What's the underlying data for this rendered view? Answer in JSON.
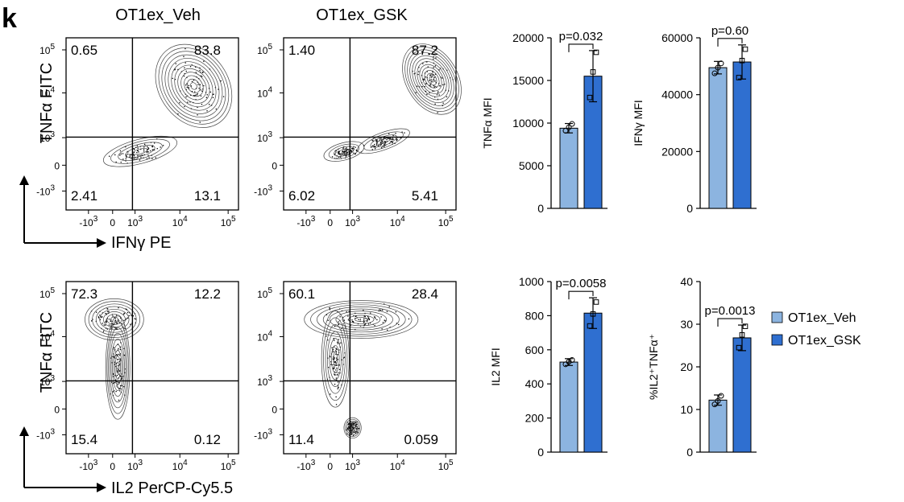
{
  "panel_letter": "k",
  "colors": {
    "veh": "#8cb4e0",
    "gsk": "#2f6fd0",
    "axis": "#000000",
    "contour": "#444444"
  },
  "flow": {
    "columns": [
      "OT1ex_Veh",
      "OT1ex_GSK"
    ],
    "x_ticks": [
      "-10",
      "0",
      "10",
      "10",
      "10"
    ],
    "x_exps": [
      "3",
      "",
      "3",
      "4",
      "5"
    ],
    "y_ticks": [
      "10",
      "10",
      "10",
      "0",
      "-10"
    ],
    "y_exps": [
      "5",
      "4",
      "3",
      "",
      "3"
    ],
    "rows": [
      {
        "ylabel": "TNFα FITC",
        "xlabel": "IFNγ PE",
        "plots": [
          {
            "q1": "0.65",
            "q2": "83.8",
            "q3": "2.41",
            "q4": "13.1"
          },
          {
            "q1": "1.40",
            "q2": "87.2",
            "q3": "6.02",
            "q4": "5.41"
          }
        ]
      },
      {
        "ylabel": "TNFα FITC",
        "xlabel": "IL2 PerCP-Cy5.5",
        "plots": [
          {
            "q1": "72.3",
            "q2": "12.2",
            "q3": "15.4",
            "q4": "0.12"
          },
          {
            "q1": "60.1",
            "q2": "28.4",
            "q3": "11.4",
            "q4": "0.059"
          }
        ]
      }
    ]
  },
  "legend": [
    "OT1ex_Veh",
    "OT1ex_GSK"
  ],
  "chart_data": [
    {
      "type": "bar",
      "ylabel": "TNFα MFI",
      "categories": [
        "OT1ex_Veh",
        "OT1ex_GSK"
      ],
      "values": [
        9400,
        15500
      ],
      "errors": [
        550,
        3000
      ],
      "points": [
        [
          9100,
          9500,
          9900
        ],
        [
          13000,
          16000,
          18300
        ]
      ],
      "ylim": [
        0,
        20000
      ],
      "yticks": [
        "0",
        "5000",
        "10000",
        "15000",
        "20000"
      ],
      "pvalue": "p=0.032"
    },
    {
      "type": "bar",
      "ylabel": "IFNγ MFI",
      "categories": [
        "OT1ex_Veh",
        "OT1ex_GSK"
      ],
      "values": [
        49500,
        51500
      ],
      "errors": [
        2200,
        6000
      ],
      "points": [
        [
          47500,
          49500,
          51000
        ],
        [
          46000,
          52000,
          56000
        ]
      ],
      "ylim": [
        0,
        60000
      ],
      "yticks": [
        "0",
        "20000",
        "40000",
        "60000"
      ],
      "pvalue": "p=0.60"
    },
    {
      "type": "bar",
      "ylabel": "IL2 MFI",
      "categories": [
        "OT1ex_Veh",
        "OT1ex_GSK"
      ],
      "values": [
        528,
        815
      ],
      "errors": [
        20,
        90
      ],
      "points": [
        [
          515,
          530,
          540
        ],
        [
          740,
          810,
          880
        ]
      ],
      "ylim": [
        0,
        1000
      ],
      "yticks": [
        "0",
        "200",
        "400",
        "600",
        "800",
        "1000"
      ],
      "pvalue": "p=0.0058"
    },
    {
      "type": "bar",
      "ylabel": "%IL2⁺TNFα⁺",
      "categories": [
        "OT1ex_Veh",
        "OT1ex_GSK"
      ],
      "values": [
        12.2,
        26.8
      ],
      "errors": [
        1.2,
        3.0
      ],
      "points": [
        [
          11.2,
          12.0,
          13.2
        ],
        [
          24.5,
          27.5,
          29.5
        ]
      ],
      "ylim": [
        0,
        40
      ],
      "yticks": [
        "0",
        "10",
        "20",
        "30",
        "40"
      ],
      "pvalue": "p=0.0013"
    }
  ]
}
